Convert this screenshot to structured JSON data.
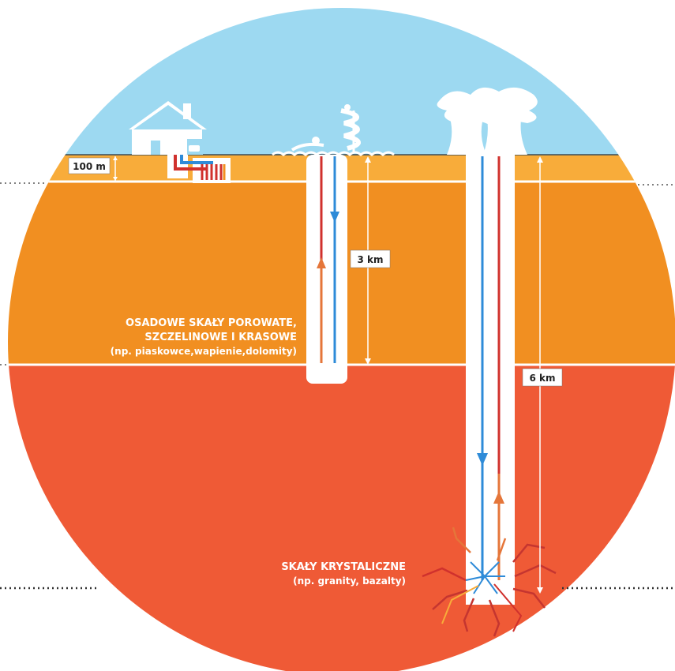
{
  "depths": {
    "shallow": "100 m",
    "medium": "3 km",
    "deep": "6 km"
  },
  "layers": {
    "sedimentary": {
      "line1": "OSADOWE SKAŁY POROWATE,",
      "line2": "SZCZELINOWE I KRASOWE",
      "line3": "(np. piaskowce,wapienie,dolomity)"
    },
    "crystalline": {
      "line1": "SKAŁY KRYSTALICZNE",
      "line2": "(np. granity, bazalty)"
    }
  },
  "colors": {
    "sky": "#9dd9f1",
    "surface_layer": "#f8ac3a",
    "sedimentary_layer": "#f18f21",
    "crystalline_layer": "#ef5a36",
    "hot_pipe": "#d0312d",
    "cold_pipe": "#2e8bd8",
    "hot_up_arrow": "#e5763a"
  },
  "icons": [
    "house-icon",
    "heat-pump-icon",
    "water-park-icon",
    "power-plant-icon"
  ]
}
